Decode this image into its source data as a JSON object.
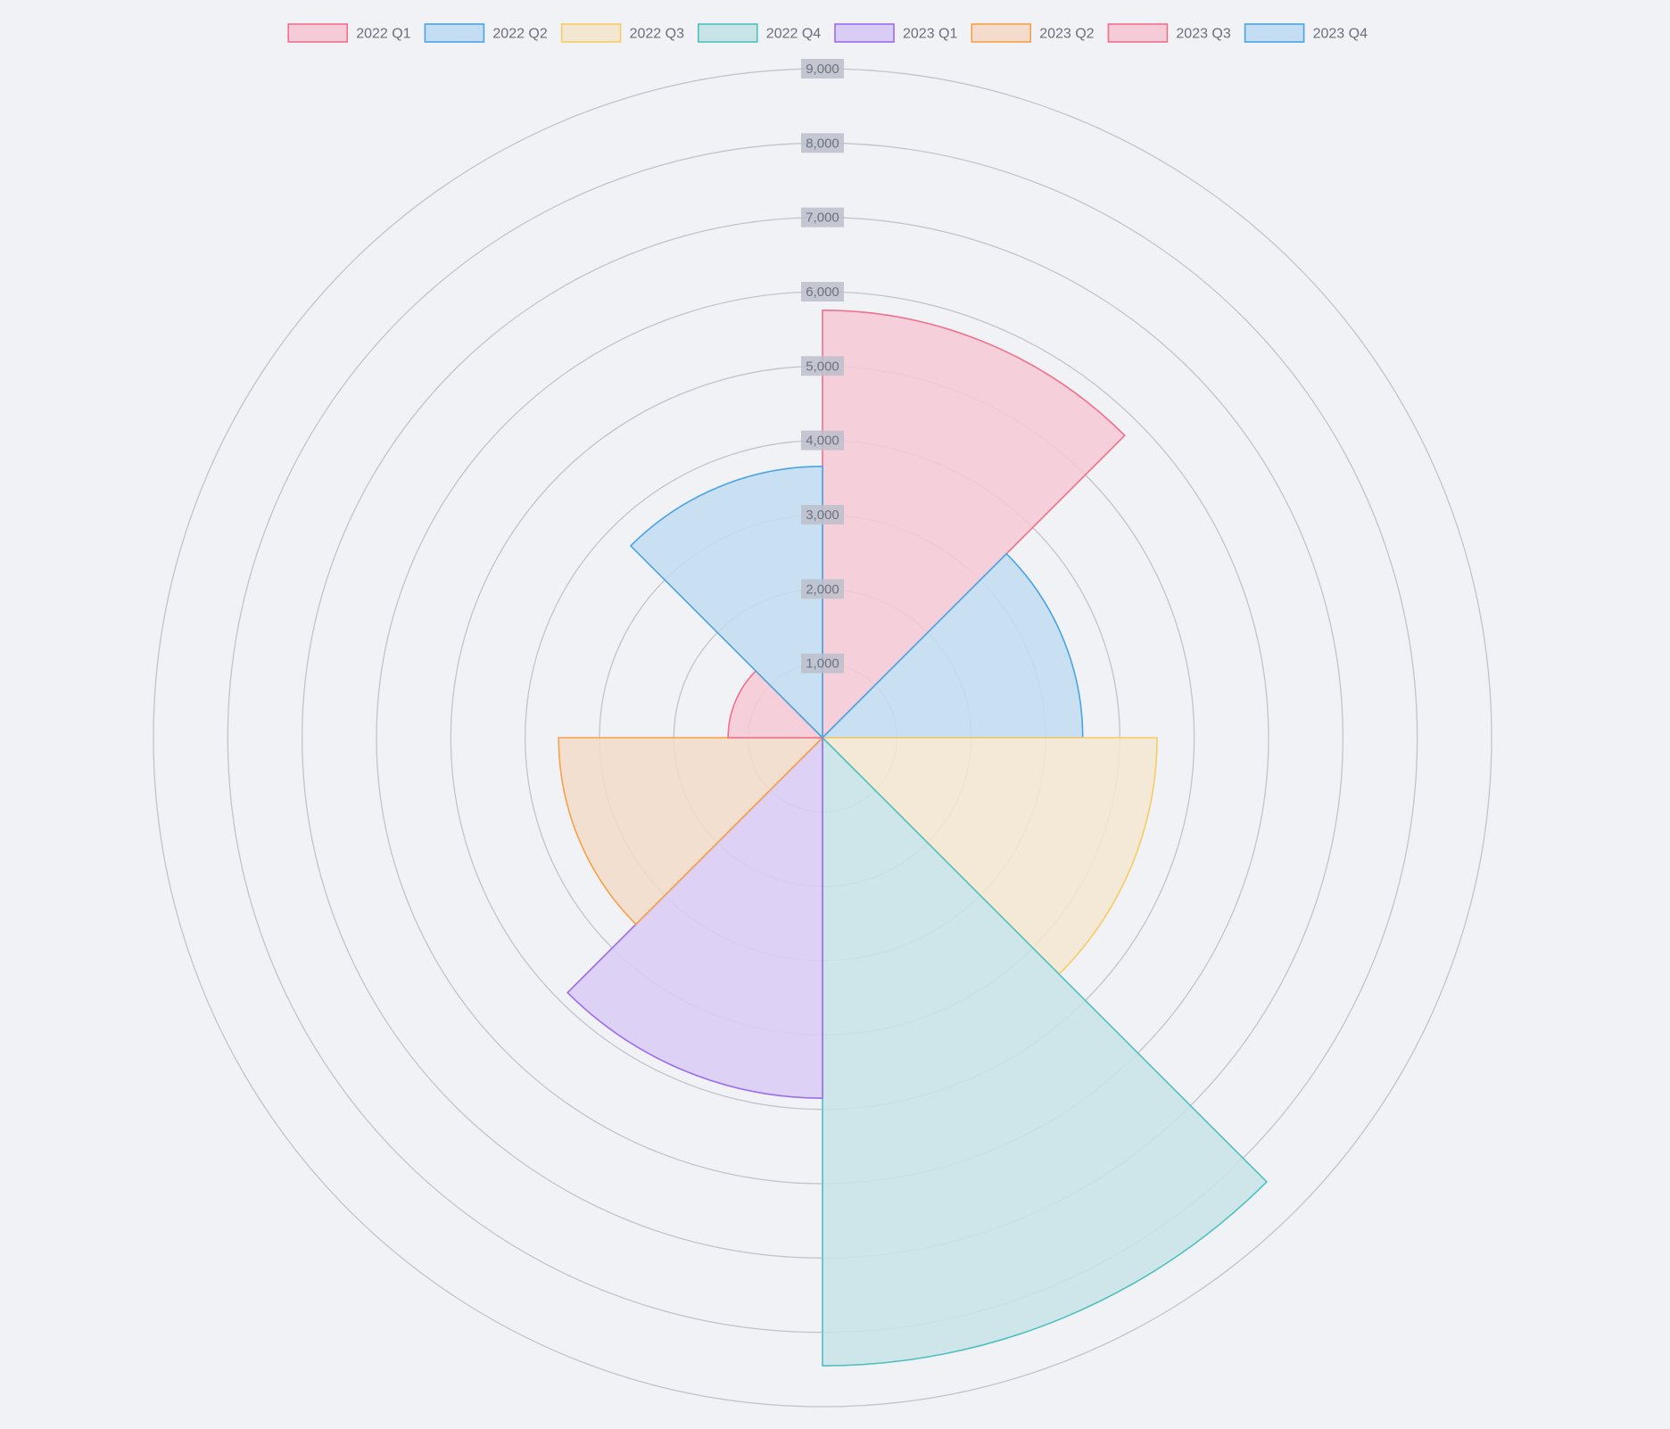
{
  "chart_data": {
    "type": "polarArea",
    "title": "",
    "categories": [
      "2022 Q1",
      "2022 Q2",
      "2022 Q3",
      "2022 Q4",
      "2023 Q1",
      "2023 Q2",
      "2023 Q3",
      "2023 Q4"
    ],
    "values": [
      5750,
      3500,
      4500,
      8450,
      4850,
      3550,
      1270,
      3650
    ],
    "r_range": [
      0,
      9000
    ],
    "r_ticks": [
      1000,
      2000,
      3000,
      4000,
      5000,
      6000,
      7000,
      8000,
      9000
    ],
    "tick_labels": [
      "1,000",
      "2,000",
      "3,000",
      "4,000",
      "5,000",
      "6,000",
      "7,000",
      "8,000",
      "9,000"
    ],
    "legend_position": "top",
    "grid": true,
    "colors": {
      "border": [
        "#f0718d",
        "#4aa3e3",
        "#f5cd66",
        "#4fc0c0",
        "#9b6cf0",
        "#f7a04a",
        "#f0718d",
        "#4aa3e3"
      ],
      "fill": [
        "#f5cbd7",
        "#c3ddf2",
        "#f3e7d1",
        "#c8e4e7",
        "#d9cdf6",
        "#f3dccb",
        "#f5cbd7",
        "#c3ddf2"
      ],
      "grid": "#c2c4cd",
      "tick_backdrop": "#bcbfca",
      "background": "#f1f2f5"
    }
  }
}
